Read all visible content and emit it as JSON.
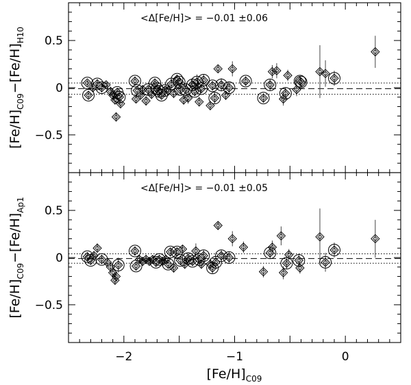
{
  "chart_data": [
    {
      "type": "scatter",
      "xlabel_main": "[Fe/H]",
      "xlabel_sub": "C09",
      "ylabel_parts": [
        "[Fe/H]",
        "C09",
        "−[Fe/H]",
        "H10"
      ],
      "annotation": "<Δ[Fe/H]> = −0.01 ±0.06",
      "mean_offset": -0.01,
      "scatter": 0.06,
      "xlim": [
        -2.5,
        0.5
      ],
      "ylim": [
        -0.9,
        0.9
      ],
      "x_ticklabels": [],
      "y_ticks": [
        0.5,
        0,
        -0.5
      ],
      "y_ticklabels": [
        "0.5",
        "0",
        "−0.5"
      ],
      "points": [
        {
          "x": -2.33,
          "y": 0.05,
          "err": 0.03,
          "ring": true
        },
        {
          "x": -2.32,
          "y": -0.08,
          "err": 0.04,
          "ring": true
        },
        {
          "x": -2.28,
          "y": 0.0,
          "err": 0.05,
          "ring": false
        },
        {
          "x": -2.24,
          "y": 0.04,
          "err": 0.05,
          "ring": true
        },
        {
          "x": -2.2,
          "y": 0.0,
          "err": 0.05,
          "ring": true
        },
        {
          "x": -2.16,
          "y": 0.03,
          "err": 0.03,
          "ring": false
        },
        {
          "x": -2.12,
          "y": -0.04,
          "err": 0.05,
          "ring": false
        },
        {
          "x": -2.1,
          "y": -0.08,
          "err": 0.06,
          "ring": false
        },
        {
          "x": -2.08,
          "y": -0.13,
          "err": 0.05,
          "ring": false
        },
        {
          "x": -2.07,
          "y": -0.31,
          "err": 0.05,
          "ring": false
        },
        {
          "x": -2.06,
          "y": -0.05,
          "err": 0.05,
          "ring": true
        },
        {
          "x": -2.04,
          "y": -0.1,
          "err": 0.08,
          "ring": true
        },
        {
          "x": -2.03,
          "y": -0.17,
          "err": 0.05,
          "ring": false
        },
        {
          "x": -1.9,
          "y": 0.07,
          "err": 0.04,
          "ring": true
        },
        {
          "x": -1.89,
          "y": -0.12,
          "err": 0.04,
          "ring": false
        },
        {
          "x": -1.88,
          "y": -0.03,
          "err": 0.04,
          "ring": true
        },
        {
          "x": -1.85,
          "y": -0.08,
          "err": 0.04,
          "ring": false
        },
        {
          "x": -1.83,
          "y": -0.02,
          "err": 0.04,
          "ring": false
        },
        {
          "x": -1.8,
          "y": -0.14,
          "err": 0.05,
          "ring": false
        },
        {
          "x": -1.78,
          "y": -0.02,
          "err": 0.04,
          "ring": true
        },
        {
          "x": -1.75,
          "y": -0.07,
          "err": 0.05,
          "ring": false
        },
        {
          "x": -1.72,
          "y": 0.05,
          "err": 0.04,
          "ring": true
        },
        {
          "x": -1.7,
          "y": -0.01,
          "err": 0.04,
          "ring": true
        },
        {
          "x": -1.68,
          "y": -0.04,
          "err": 0.06,
          "ring": true
        },
        {
          "x": -1.66,
          "y": -0.08,
          "err": 0.04,
          "ring": true
        },
        {
          "x": -1.63,
          "y": -0.03,
          "err": 0.05,
          "ring": true
        },
        {
          "x": -1.6,
          "y": -0.03,
          "err": 0.05,
          "ring": false
        },
        {
          "x": -1.57,
          "y": 0.04,
          "err": 0.04,
          "ring": true
        },
        {
          "x": -1.55,
          "y": -0.06,
          "err": 0.05,
          "ring": false
        },
        {
          "x": -1.52,
          "y": 0.09,
          "err": 0.04,
          "ring": true
        },
        {
          "x": -1.5,
          "y": 0.06,
          "err": 0.04,
          "ring": true
        },
        {
          "x": -1.49,
          "y": -0.02,
          "err": 0.05,
          "ring": true
        },
        {
          "x": -1.46,
          "y": -0.13,
          "err": 0.05,
          "ring": false
        },
        {
          "x": -1.44,
          "y": -0.02,
          "err": 0.06,
          "ring": true
        },
        {
          "x": -1.42,
          "y": -0.11,
          "err": 0.06,
          "ring": false
        },
        {
          "x": -1.38,
          "y": 0.03,
          "err": 0.06,
          "ring": true
        },
        {
          "x": -1.36,
          "y": -0.04,
          "err": 0.05,
          "ring": true
        },
        {
          "x": -1.34,
          "y": 0.06,
          "err": 0.08,
          "ring": true
        },
        {
          "x": -1.32,
          "y": -0.15,
          "err": 0.05,
          "ring": false
        },
        {
          "x": -1.3,
          "y": -0.01,
          "err": 0.05,
          "ring": true
        },
        {
          "x": -1.28,
          "y": 0.08,
          "err": 0.06,
          "ring": true
        },
        {
          "x": -1.22,
          "y": -0.19,
          "err": 0.05,
          "ring": false
        },
        {
          "x": -1.2,
          "y": 0.02,
          "err": 0.05,
          "ring": true
        },
        {
          "x": -1.18,
          "y": -0.11,
          "err": 0.06,
          "ring": true
        },
        {
          "x": -1.15,
          "y": 0.2,
          "err": 0.04,
          "ring": false
        },
        {
          "x": -1.12,
          "y": 0.03,
          "err": 0.07,
          "ring": true
        },
        {
          "x": -1.08,
          "y": -0.08,
          "err": 0.05,
          "ring": false
        },
        {
          "x": -1.05,
          "y": 0.0,
          "err": 0.06,
          "ring": true
        },
        {
          "x": -1.02,
          "y": 0.2,
          "err": 0.08,
          "ring": false
        },
        {
          "x": -0.9,
          "y": 0.07,
          "err": 0.05,
          "ring": true
        },
        {
          "x": -0.74,
          "y": -0.11,
          "err": 0.05,
          "ring": true
        },
        {
          "x": -0.68,
          "y": 0.03,
          "err": 0.06,
          "ring": true
        },
        {
          "x": -0.66,
          "y": 0.17,
          "err": 0.07,
          "ring": false
        },
        {
          "x": -0.62,
          "y": 0.18,
          "err": 0.08,
          "ring": false
        },
        {
          "x": -0.56,
          "y": -0.12,
          "err": 0.07,
          "ring": false
        },
        {
          "x": -0.54,
          "y": -0.06,
          "err": 0.06,
          "ring": true
        },
        {
          "x": -0.52,
          "y": 0.13,
          "err": 0.06,
          "ring": false
        },
        {
          "x": -0.44,
          "y": -0.02,
          "err": 0.07,
          "ring": false
        },
        {
          "x": -0.41,
          "y": 0.07,
          "err": 0.05,
          "ring": true
        },
        {
          "x": -0.4,
          "y": 0.06,
          "err": 0.05,
          "ring": true
        },
        {
          "x": -0.23,
          "y": 0.17,
          "err": 0.28,
          "ring": false
        },
        {
          "x": -0.18,
          "y": 0.15,
          "err": 0.14,
          "ring": false
        },
        {
          "x": -0.1,
          "y": 0.1,
          "err": 0.08,
          "ring": true
        },
        {
          "x": 0.27,
          "y": 0.38,
          "err": 0.17,
          "ring": false
        }
      ]
    },
    {
      "type": "scatter",
      "xlabel_main": "[Fe/H]",
      "xlabel_sub": "C09",
      "ylabel_parts": [
        "[Fe/H]",
        "C09",
        "−[Fe/H]",
        "Ap1"
      ],
      "annotation": "<Δ[Fe/H]> = −0.01 ±0.05",
      "mean_offset": -0.01,
      "scatter": 0.05,
      "xlim": [
        -2.5,
        0.5
      ],
      "ylim": [
        -0.9,
        0.9
      ],
      "x_ticks": [
        -2,
        -1,
        0
      ],
      "x_ticklabels": [
        "−2",
        "−1",
        "0"
      ],
      "y_ticks": [
        0.5,
        0,
        -0.5
      ],
      "y_ticklabels": [
        "0.5",
        "0",
        "−0.5"
      ],
      "points": [
        {
          "x": -2.33,
          "y": 0.01,
          "err": 0.04,
          "ring": true
        },
        {
          "x": -2.3,
          "y": -0.03,
          "err": 0.04,
          "ring": true
        },
        {
          "x": -2.27,
          "y": 0.02,
          "err": 0.05,
          "ring": false
        },
        {
          "x": -2.24,
          "y": 0.1,
          "err": 0.05,
          "ring": false
        },
        {
          "x": -2.2,
          "y": -0.02,
          "err": 0.05,
          "ring": true
        },
        {
          "x": -2.15,
          "y": -0.05,
          "err": 0.04,
          "ring": false
        },
        {
          "x": -2.12,
          "y": -0.1,
          "err": 0.06,
          "ring": false
        },
        {
          "x": -2.1,
          "y": -0.16,
          "err": 0.06,
          "ring": false
        },
        {
          "x": -2.08,
          "y": -0.24,
          "err": 0.05,
          "ring": false
        },
        {
          "x": -2.07,
          "y": -0.2,
          "err": 0.05,
          "ring": false
        },
        {
          "x": -2.05,
          "y": -0.08,
          "err": 0.08,
          "ring": true
        },
        {
          "x": -1.9,
          "y": 0.07,
          "err": 0.04,
          "ring": true
        },
        {
          "x": -1.89,
          "y": -0.09,
          "err": 0.04,
          "ring": true
        },
        {
          "x": -1.86,
          "y": -0.02,
          "err": 0.04,
          "ring": false
        },
        {
          "x": -1.83,
          "y": -0.04,
          "err": 0.04,
          "ring": false
        },
        {
          "x": -1.8,
          "y": -0.02,
          "err": 0.05,
          "ring": false
        },
        {
          "x": -1.77,
          "y": -0.04,
          "err": 0.04,
          "ring": false
        },
        {
          "x": -1.74,
          "y": -0.02,
          "err": 0.04,
          "ring": false
        },
        {
          "x": -1.71,
          "y": -0.05,
          "err": 0.05,
          "ring": true
        },
        {
          "x": -1.68,
          "y": -0.02,
          "err": 0.05,
          "ring": true
        },
        {
          "x": -1.65,
          "y": -0.04,
          "err": 0.05,
          "ring": false
        },
        {
          "x": -1.62,
          "y": -0.02,
          "err": 0.05,
          "ring": false
        },
        {
          "x": -1.6,
          "y": -0.07,
          "err": 0.05,
          "ring": true
        },
        {
          "x": -1.58,
          "y": 0.06,
          "err": 0.04,
          "ring": true
        },
        {
          "x": -1.55,
          "y": -0.11,
          "err": 0.05,
          "ring": false
        },
        {
          "x": -1.52,
          "y": 0.06,
          "err": 0.05,
          "ring": true
        },
        {
          "x": -1.49,
          "y": -0.03,
          "err": 0.05,
          "ring": true
        },
        {
          "x": -1.47,
          "y": 0.09,
          "err": 0.04,
          "ring": false
        },
        {
          "x": -1.45,
          "y": -0.07,
          "err": 0.05,
          "ring": false
        },
        {
          "x": -1.42,
          "y": -0.01,
          "err": 0.06,
          "ring": true
        },
        {
          "x": -1.38,
          "y": -0.04,
          "err": 0.05,
          "ring": true
        },
        {
          "x": -1.35,
          "y": 0.07,
          "err": 0.08,
          "ring": false
        },
        {
          "x": -1.32,
          "y": -0.02,
          "err": 0.05,
          "ring": true
        },
        {
          "x": -1.3,
          "y": -0.07,
          "err": 0.05,
          "ring": false
        },
        {
          "x": -1.28,
          "y": 0.02,
          "err": 0.06,
          "ring": true
        },
        {
          "x": -1.22,
          "y": -0.07,
          "err": 0.06,
          "ring": false
        },
        {
          "x": -1.2,
          "y": -0.11,
          "err": 0.06,
          "ring": true
        },
        {
          "x": -1.17,
          "y": -0.05,
          "err": 0.05,
          "ring": true
        },
        {
          "x": -1.15,
          "y": 0.34,
          "err": 0.04,
          "ring": false
        },
        {
          "x": -1.12,
          "y": 0.02,
          "err": 0.06,
          "ring": true
        },
        {
          "x": -1.05,
          "y": 0.0,
          "err": 0.06,
          "ring": true
        },
        {
          "x": -1.02,
          "y": 0.2,
          "err": 0.08,
          "ring": false
        },
        {
          "x": -0.92,
          "y": 0.11,
          "err": 0.06,
          "ring": false
        },
        {
          "x": -0.74,
          "y": -0.15,
          "err": 0.06,
          "ring": false
        },
        {
          "x": -0.68,
          "y": 0.05,
          "err": 0.06,
          "ring": true
        },
        {
          "x": -0.66,
          "y": 0.11,
          "err": 0.07,
          "ring": false
        },
        {
          "x": -0.58,
          "y": 0.23,
          "err": 0.1,
          "ring": false
        },
        {
          "x": -0.56,
          "y": -0.16,
          "err": 0.07,
          "ring": false
        },
        {
          "x": -0.53,
          "y": -0.06,
          "err": 0.06,
          "ring": true
        },
        {
          "x": -0.51,
          "y": 0.03,
          "err": 0.06,
          "ring": false
        },
        {
          "x": -0.42,
          "y": -0.03,
          "err": 0.07,
          "ring": true
        },
        {
          "x": -0.41,
          "y": -0.11,
          "err": 0.06,
          "ring": false
        },
        {
          "x": -0.23,
          "y": 0.22,
          "err": 0.3,
          "ring": false
        },
        {
          "x": -0.18,
          "y": -0.05,
          "err": 0.1,
          "ring": true
        },
        {
          "x": -0.1,
          "y": 0.08,
          "err": 0.08,
          "ring": true
        },
        {
          "x": 0.27,
          "y": 0.2,
          "err": 0.2,
          "ring": false
        }
      ]
    }
  ]
}
